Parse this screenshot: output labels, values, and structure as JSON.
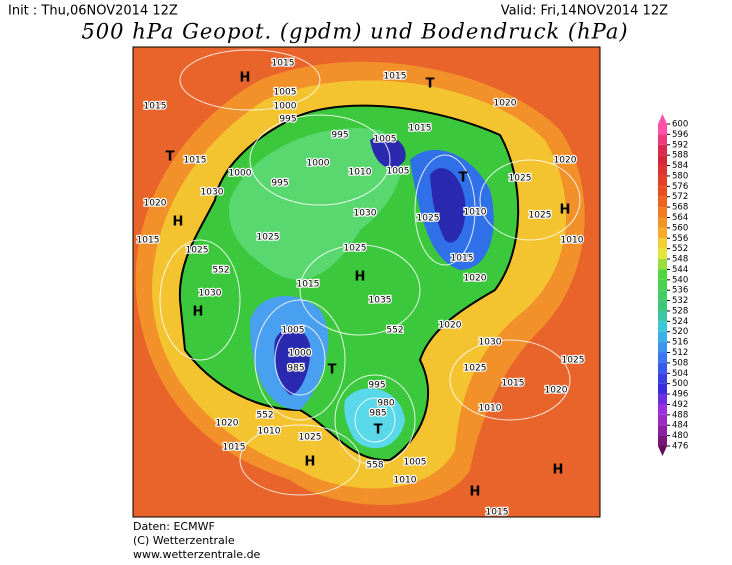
{
  "header": {
    "init": "Init : Thu,06NOV2014 12Z",
    "valid": "Valid: Fri,14NOV2014 12Z",
    "title": "500 hPa Geopot. (gpdm) und Bodendruck (hPa)"
  },
  "footer": [
    "Daten: ECMWF",
    "(C) Wetterzentrale",
    "www.wetterzentrale.de"
  ],
  "colorbar": {
    "ticks": [
      600,
      596,
      592,
      588,
      584,
      580,
      576,
      572,
      568,
      564,
      560,
      556,
      552,
      548,
      544,
      540,
      536,
      532,
      528,
      524,
      520,
      516,
      512,
      508,
      504,
      500,
      496,
      492,
      488,
      484,
      480,
      476
    ]
  },
  "map": {
    "labels": [
      "1015",
      "1015",
      "T",
      "H",
      "1015",
      "1005",
      "1000",
      "995",
      "1020",
      "1015",
      "1005",
      "995",
      "T",
      "1015",
      "1000",
      "1000",
      "995",
      "1010",
      "1005",
      "T",
      "1020",
      "1025",
      "1030",
      "1020",
      "H",
      "1030",
      "1025",
      "1010",
      "1025",
      "H",
      "1015",
      "1025",
      "1025",
      "1025",
      "H",
      "1015",
      "1020",
      "1010",
      "1030",
      "1015",
      "1035",
      "H",
      "1005",
      "1020",
      "1030",
      "1000",
      "985",
      "T",
      "995",
      "1025",
      "1015",
      "1025",
      "980",
      "985",
      "T",
      "1020",
      "1010",
      "1025",
      "1015",
      "H",
      "1005",
      "1010",
      "H",
      "1015",
      "1020",
      "1010",
      "H",
      "552",
      "552",
      "552",
      "558"
    ]
  }
}
